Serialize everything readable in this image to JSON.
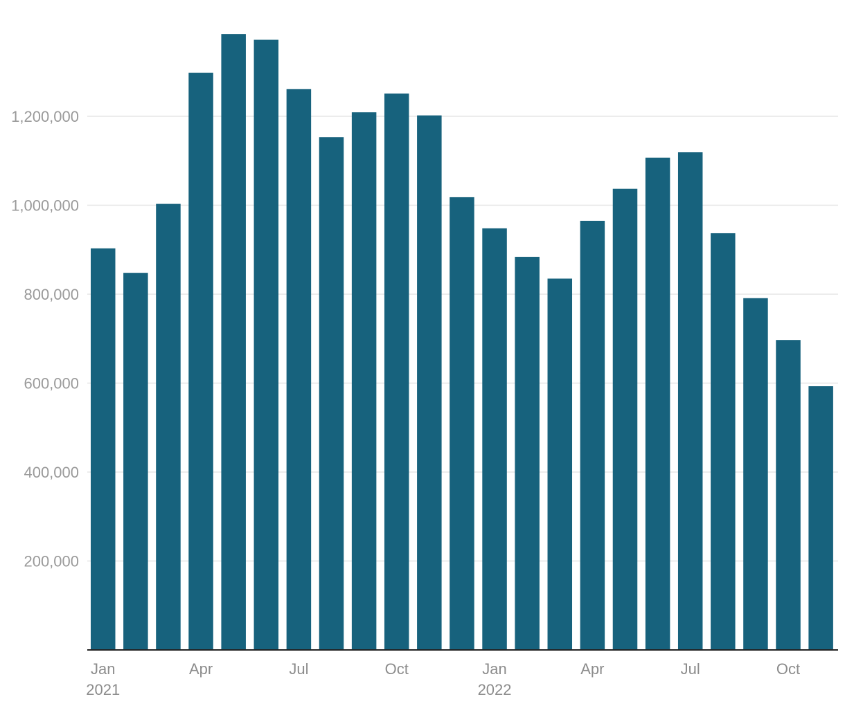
{
  "chart_data": {
    "type": "bar",
    "categories": [
      "2021-01",
      "2021-02",
      "2021-03",
      "2021-04",
      "2021-05",
      "2021-06",
      "2021-07",
      "2021-08",
      "2021-09",
      "2021-10",
      "2021-11",
      "2021-12",
      "2022-01",
      "2022-02",
      "2022-03",
      "2022-04",
      "2022-05",
      "2022-06",
      "2022-07",
      "2022-08",
      "2022-09",
      "2022-10",
      "2022-11"
    ],
    "values": [
      903000,
      848000,
      1003000,
      1298000,
      1385000,
      1372000,
      1261000,
      1153000,
      1209000,
      1251000,
      1202000,
      1018000,
      948000,
      884000,
      835000,
      965000,
      1037000,
      1107000,
      1119000,
      937000,
      791000,
      697000,
      593000
    ],
    "ylim": [
      0,
      1400000
    ],
    "yticks": [
      {
        "value": 200000,
        "label": "200,000"
      },
      {
        "value": 400000,
        "label": "400,000"
      },
      {
        "value": 600000,
        "label": "600,000"
      },
      {
        "value": 800000,
        "label": "800,000"
      },
      {
        "value": 1000000,
        "label": "1,000,000"
      },
      {
        "value": 1200000,
        "label": "1,200,000"
      }
    ],
    "xticks": [
      {
        "index": 0,
        "label": "Jan",
        "sublabel": "2021"
      },
      {
        "index": 3,
        "label": "Apr",
        "sublabel": ""
      },
      {
        "index": 6,
        "label": "Jul",
        "sublabel": ""
      },
      {
        "index": 9,
        "label": "Oct",
        "sublabel": ""
      },
      {
        "index": 12,
        "label": "Jan",
        "sublabel": "2022"
      },
      {
        "index": 15,
        "label": "Apr",
        "sublabel": ""
      },
      {
        "index": 18,
        "label": "Jul",
        "sublabel": ""
      },
      {
        "index": 21,
        "label": "Oct",
        "sublabel": ""
      }
    ],
    "title": "",
    "xlabel": "",
    "ylabel": "",
    "grid": true,
    "bar_color": "#17627d",
    "grid_color": "#e6e6e6",
    "axis_color": "#222222"
  }
}
